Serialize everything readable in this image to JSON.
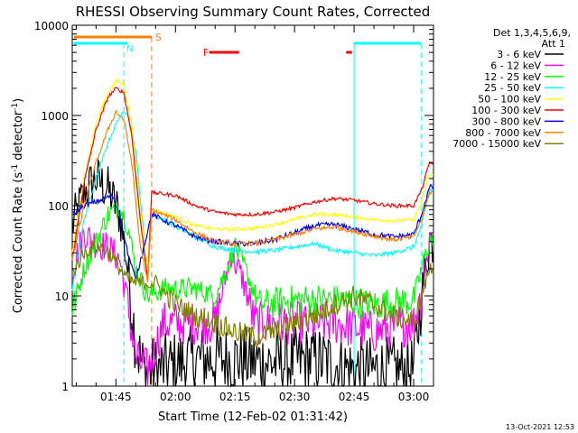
{
  "chart_data": {
    "type": "line",
    "title": "RHESSI Observing Summary Count Rates, Corrected",
    "xlabel": "Start Time (12-Feb-02 01:31:42)",
    "ylabel_main": "Corrected Count Rate (s",
    "ylabel_sup1": "-1",
    "ylabel_mid": " detector",
    "ylabel_sup2": "-1",
    "ylabel_end": ")",
    "yscale": "log",
    "ylim": [
      1,
      10000
    ],
    "xlim_minutes": [
      -11,
      57.5
    ],
    "xticks": [
      {
        "t": 0,
        "label": "01:45"
      },
      {
        "t": 15,
        "label": "02:00"
      },
      {
        "t": 30,
        "label": "02:15"
      },
      {
        "t": 45,
        "label": "02:30"
      },
      {
        "t": 60,
        "label": "02:45"
      },
      {
        "t": 75,
        "label": "03:00"
      }
    ],
    "yticks": [
      {
        "v": 1,
        "label": "1"
      },
      {
        "v": 10,
        "label": "10"
      },
      {
        "v": 100,
        "label": "100"
      },
      {
        "v": 1000,
        "label": "1000"
      },
      {
        "v": 10000,
        "label": "10000"
      }
    ],
    "legend_header": [
      "Det 1,3,4,5,6,9,",
      "Att 1"
    ],
    "legend_placement": "top-right",
    "series": [
      {
        "name": "3 - 6 keV",
        "color": "#000000",
        "points": [
          [
            -11,
            60
          ],
          [
            -8,
            140
          ],
          [
            -5,
            200
          ],
          [
            -2,
            150
          ],
          [
            1,
            80
          ],
          [
            3,
            20
          ],
          [
            5,
            3
          ],
          [
            7,
            1.5
          ],
          [
            10,
            1.5
          ],
          [
            20,
            2
          ],
          [
            30,
            2
          ],
          [
            40,
            1.8
          ],
          [
            50,
            2
          ],
          [
            60,
            1.5
          ],
          [
            70,
            1.5
          ],
          [
            75,
            1.5
          ],
          [
            77,
            10
          ],
          [
            79,
            40
          ]
        ]
      },
      {
        "name": "6 - 12 keV",
        "color": "#ff00ff",
        "points": [
          [
            -11,
            20
          ],
          [
            -8,
            50
          ],
          [
            -5,
            38
          ],
          [
            -2,
            35
          ],
          [
            1,
            25
          ],
          [
            3,
            8
          ],
          [
            5,
            2
          ],
          [
            8,
            1.5
          ],
          [
            12,
            5
          ],
          [
            20,
            5
          ],
          [
            25,
            5
          ],
          [
            29,
            30
          ],
          [
            32,
            15
          ],
          [
            35,
            5
          ],
          [
            45,
            5
          ],
          [
            55,
            5
          ],
          [
            65,
            4
          ],
          [
            75,
            5
          ],
          [
            77,
            10
          ],
          [
            79,
            45
          ]
        ]
      },
      {
        "name": "12 - 25 keV",
        "color": "#00ff00",
        "points": [
          [
            -11,
            7
          ],
          [
            -8,
            20
          ],
          [
            -5,
            40
          ],
          [
            -2,
            80
          ],
          [
            1,
            100
          ],
          [
            3,
            60
          ],
          [
            5,
            20
          ],
          [
            8,
            10
          ],
          [
            12,
            12
          ],
          [
            20,
            12
          ],
          [
            25,
            10
          ],
          [
            28,
            20
          ],
          [
            30,
            35
          ],
          [
            33,
            18
          ],
          [
            36,
            8
          ],
          [
            45,
            9
          ],
          [
            55,
            9
          ],
          [
            65,
            8
          ],
          [
            75,
            9
          ],
          [
            77,
            20
          ],
          [
            79,
            40
          ]
        ]
      },
      {
        "name": "25 - 50 keV",
        "color": "#00ffff",
        "points": [
          [
            -11,
            12
          ],
          [
            -8,
            70
          ],
          [
            -5,
            200
          ],
          [
            -2,
            500
          ],
          [
            1,
            1000
          ],
          [
            3,
            1100
          ],
          [
            5,
            400
          ],
          [
            7,
            50
          ],
          [
            8,
            15
          ],
          [
            9,
            80
          ],
          [
            15,
            60
          ],
          [
            20,
            45
          ],
          [
            25,
            35
          ],
          [
            30,
            32
          ],
          [
            35,
            31
          ],
          [
            40,
            32
          ],
          [
            45,
            35
          ],
          [
            50,
            38
          ],
          [
            55,
            32
          ],
          [
            60,
            30
          ],
          [
            65,
            28
          ],
          [
            70,
            30
          ],
          [
            75,
            35
          ],
          [
            77,
            60
          ],
          [
            79,
            150
          ]
        ]
      },
      {
        "name": "50 - 100 keV",
        "color": "#ffff00",
        "points": [
          [
            -11,
            30
          ],
          [
            -8,
            200
          ],
          [
            -5,
            800
          ],
          [
            -2,
            1800
          ],
          [
            0,
            2400
          ],
          [
            2,
            2200
          ],
          [
            4,
            800
          ],
          [
            6,
            100
          ],
          [
            8,
            20
          ],
          [
            9,
            90
          ],
          [
            15,
            75
          ],
          [
            20,
            60
          ],
          [
            25,
            55
          ],
          [
            30,
            55
          ],
          [
            35,
            56
          ],
          [
            40,
            62
          ],
          [
            45,
            70
          ],
          [
            50,
            80
          ],
          [
            55,
            80
          ],
          [
            60,
            75
          ],
          [
            65,
            70
          ],
          [
            70,
            68
          ],
          [
            75,
            70
          ],
          [
            77,
            110
          ],
          [
            79,
            220
          ]
        ]
      },
      {
        "name": "100 - 300 keV",
        "color": "#ff0000",
        "points": [
          [
            -11,
            25
          ],
          [
            -8,
            180
          ],
          [
            -5,
            700
          ],
          [
            -2,
            1600
          ],
          [
            0,
            2000
          ],
          [
            2,
            1800
          ],
          [
            4,
            600
          ],
          [
            6,
            80
          ],
          [
            8,
            15
          ],
          [
            9,
            140
          ],
          [
            15,
            130
          ],
          [
            20,
            100
          ],
          [
            25,
            85
          ],
          [
            30,
            80
          ],
          [
            35,
            80
          ],
          [
            40,
            85
          ],
          [
            45,
            95
          ],
          [
            50,
            110
          ],
          [
            55,
            120
          ],
          [
            60,
            115
          ],
          [
            65,
            105
          ],
          [
            70,
            100
          ],
          [
            75,
            100
          ],
          [
            77,
            150
          ],
          [
            79,
            300
          ]
        ]
      },
      {
        "name": "300 - 800 keV",
        "color": "#0000ff",
        "points": [
          [
            -11,
            80
          ],
          [
            -8,
            100
          ],
          [
            -5,
            110
          ],
          [
            -3,
            120
          ],
          [
            -1,
            130
          ],
          [
            1,
            80
          ],
          [
            3,
            30
          ],
          [
            5,
            15
          ],
          [
            9,
            80
          ],
          [
            15,
            60
          ],
          [
            20,
            45
          ],
          [
            25,
            40
          ],
          [
            30,
            38
          ],
          [
            35,
            38
          ],
          [
            40,
            42
          ],
          [
            45,
            50
          ],
          [
            50,
            60
          ],
          [
            55,
            62
          ],
          [
            60,
            55
          ],
          [
            65,
            48
          ],
          [
            70,
            45
          ],
          [
            75,
            48
          ],
          [
            77,
            80
          ],
          [
            79,
            160
          ]
        ]
      },
      {
        "name": "800 - 7000 keV",
        "color": "#ff8000",
        "points": [
          [
            -11,
            25
          ],
          [
            -8,
            100
          ],
          [
            -5,
            300
          ],
          [
            -2,
            700
          ],
          [
            0,
            1100
          ],
          [
            2,
            900
          ],
          [
            4,
            300
          ],
          [
            6,
            40
          ],
          [
            8,
            14
          ],
          [
            9,
            90
          ],
          [
            15,
            70
          ],
          [
            20,
            50
          ],
          [
            25,
            40
          ],
          [
            30,
            38
          ],
          [
            35,
            38
          ],
          [
            40,
            42
          ],
          [
            45,
            48
          ],
          [
            50,
            55
          ],
          [
            55,
            58
          ],
          [
            60,
            52
          ],
          [
            65,
            46
          ],
          [
            70,
            42
          ],
          [
            75,
            45
          ],
          [
            77,
            70
          ],
          [
            79,
            140
          ]
        ]
      },
      {
        "name": "7000 - 15000 keV",
        "color": "#808000",
        "points": [
          [
            -11,
            18
          ],
          [
            -8,
            30
          ],
          [
            -5,
            36
          ],
          [
            -2,
            32
          ],
          [
            1,
            20
          ],
          [
            3,
            15
          ],
          [
            5,
            14
          ],
          [
            8,
            14
          ],
          [
            10,
            14
          ],
          [
            15,
            8
          ],
          [
            20,
            6
          ],
          [
            25,
            5
          ],
          [
            30,
            4
          ],
          [
            35,
            3.5
          ],
          [
            40,
            4
          ],
          [
            45,
            5
          ],
          [
            50,
            6
          ],
          [
            55,
            8
          ],
          [
            60,
            10
          ],
          [
            65,
            8
          ],
          [
            70,
            6
          ],
          [
            75,
            5
          ],
          [
            77,
            10
          ],
          [
            79,
            20
          ]
        ]
      }
    ],
    "flags": [
      {
        "label": "S",
        "color": "#ff8000"
      },
      {
        "label": "F",
        "color": "#ff0000"
      },
      {
        "label": "N",
        "color": "#00ffff"
      }
    ]
  },
  "footer": {
    "timestamp": "13-Oct-2021 12:53"
  }
}
